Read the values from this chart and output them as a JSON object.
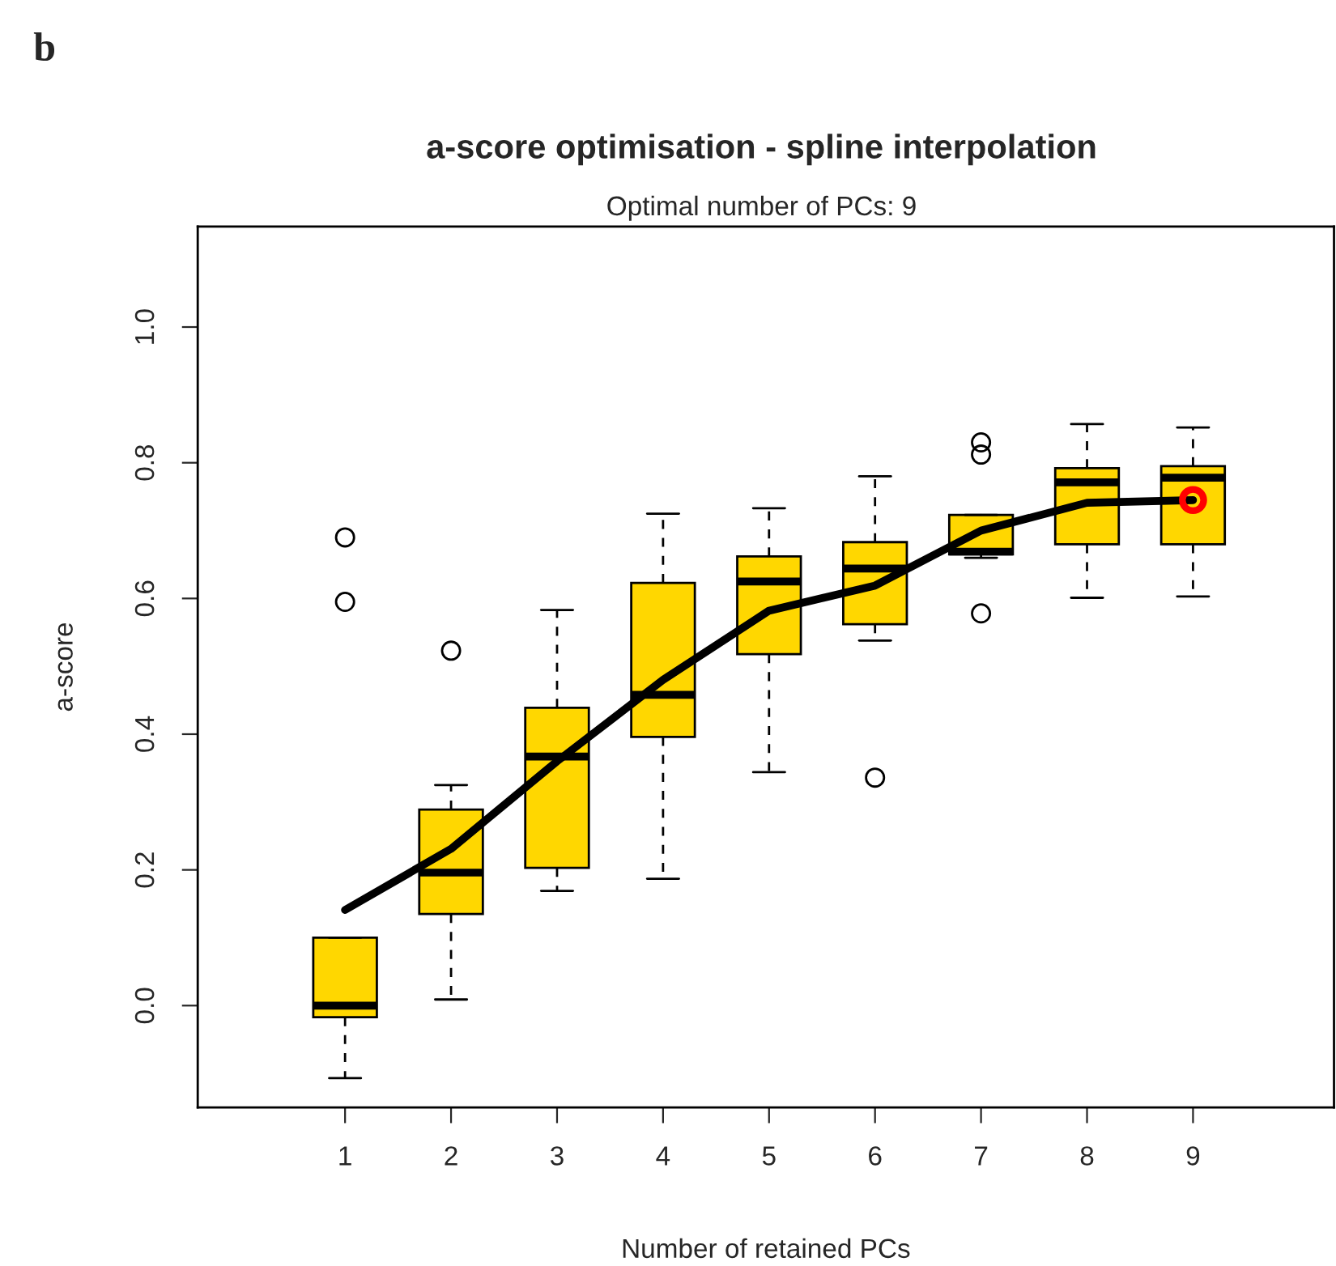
{
  "chart_data": {
    "type": "box",
    "title": "a-score optimisation - spline interpolation",
    "subtitle": "Optimal number of PCs: 9",
    "xlabel": "Number of retained PCs",
    "ylabel": "a-score",
    "annotations": [
      "b"
    ],
    "x": [
      1,
      2,
      3,
      4,
      5,
      6,
      7,
      8,
      9
    ],
    "color": "#ffd700",
    "boxes": [
      {
        "low": -0.107,
        "q1": -0.017,
        "median": 0.0,
        "q3": 0.1,
        "high": 0.1,
        "outliers": [
          0.69,
          0.595
        ]
      },
      {
        "low": 0.009,
        "q1": 0.135,
        "median": 0.196,
        "q3": 0.289,
        "high": 0.325,
        "outliers": [
          0.523
        ]
      },
      {
        "low": 0.169,
        "q1": 0.203,
        "median": 0.367,
        "q3": 0.439,
        "high": 0.583
      },
      {
        "low": 0.187,
        "q1": 0.396,
        "median": 0.458,
        "q3": 0.623,
        "high": 0.725
      },
      {
        "low": 0.344,
        "q1": 0.518,
        "median": 0.625,
        "q3": 0.662,
        "high": 0.733
      },
      {
        "low": 0.538,
        "q1": 0.562,
        "median": 0.644,
        "q3": 0.683,
        "high": 0.78,
        "outliers": [
          0.336
        ]
      },
      {
        "low": 0.66,
        "q1": 0.665,
        "median": 0.669,
        "q3": 0.723,
        "high": 0.723,
        "outliers": [
          0.83,
          0.812,
          0.578
        ]
      },
      {
        "low": 0.601,
        "q1": 0.68,
        "median": 0.771,
        "q3": 0.792,
        "high": 0.857
      },
      {
        "low": 0.603,
        "q1": 0.68,
        "median": 0.778,
        "q3": 0.795,
        "high": 0.852
      }
    ],
    "series": [
      {
        "type": "line",
        "color": "#000000",
        "x": [
          1,
          2,
          3,
          4,
          5,
          6,
          7,
          8,
          9
        ],
        "values": [
          0.141,
          0.231,
          0.36,
          0.48,
          0.582,
          0.619,
          0.7,
          0.741,
          0.745
        ]
      },
      {
        "type": "scatter",
        "color": "#ff0000",
        "x": [
          9
        ],
        "values": [
          0.745
        ]
      }
    ],
    "xlim": [
      -0.39,
      10.33
    ],
    "ylim": [
      -0.15,
      1.148
    ],
    "xticks": [
      1,
      2,
      3,
      4,
      5,
      6,
      7,
      8,
      9
    ],
    "yticks": [
      {
        "value": 0,
        "label": "0.0"
      },
      {
        "value": 0.2,
        "label": "0.2"
      },
      {
        "value": 0.4,
        "label": "0.4"
      },
      {
        "value": 0.6,
        "label": "0.6"
      },
      {
        "value": 0.8,
        "label": "0.8"
      },
      {
        "value": 1,
        "label": "1.0"
      }
    ],
    "grid": false,
    "legend": false
  }
}
